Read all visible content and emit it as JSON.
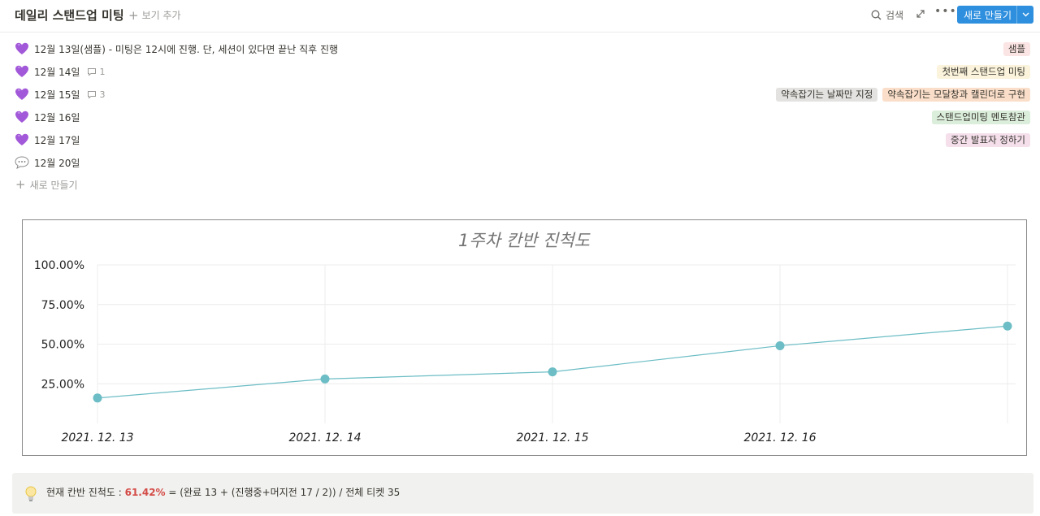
{
  "header": {
    "title": "데일리 스탠드업 미팅",
    "add_view": "보기 추가",
    "search": "검색",
    "new_button": "새로 만들기"
  },
  "rows": [
    {
      "icon": "purple-heart-icon",
      "title": "12월 13일(샘플) - 미팅은 12시에 진행. 단, 세션이 있다면 끝난 직후 진행",
      "comments": "",
      "tags": [
        {
          "label": "샘플",
          "bg": "#fbe4e4"
        }
      ]
    },
    {
      "icon": "purple-heart-icon",
      "title": "12월 14일",
      "comments": "1",
      "tags": [
        {
          "label": "첫번째 스탠드업 미팅",
          "bg": "#fbf3db"
        }
      ]
    },
    {
      "icon": "purple-heart-icon",
      "title": "12월 15일",
      "comments": "3",
      "tags": [
        {
          "label": "약속잡기는 날짜만 지정",
          "bg": "#e3e2e0"
        },
        {
          "label": "약속잡기는 모달창과 캘린더로 구현",
          "bg": "#fadec9"
        }
      ]
    },
    {
      "icon": "purple-heart-icon",
      "title": "12월 16일",
      "comments": "",
      "tags": [
        {
          "label": "스탠드업미팅 멘토참관",
          "bg": "#dbeddb"
        }
      ]
    },
    {
      "icon": "purple-heart-icon",
      "title": "12월 17일",
      "comments": "",
      "tags": [
        {
          "label": "중간 발표자 정하기",
          "bg": "#f4dfeb"
        }
      ]
    },
    {
      "icon": "speech-bubble-icon",
      "title": "12월 20일",
      "comments": "",
      "tags": []
    }
  ],
  "new_row": "새로 만들기",
  "chart_data": {
    "type": "line",
    "title": "1주차 칸반 진척도",
    "xlabel": "",
    "ylabel": "",
    "x": [
      "2021. 12. 13",
      "2021. 12. 14",
      "2021. 12. 15",
      "2021. 12. 16",
      ""
    ],
    "y_ticks": [
      "25.00%",
      "50.00%",
      "75.00%",
      "100.00%"
    ],
    "ylim": [
      0,
      100
    ],
    "grid": true,
    "color": "#6cbdc5",
    "series": [
      {
        "values": [
          16,
          28,
          32.5,
          49,
          61.42
        ]
      }
    ]
  },
  "callout": {
    "prefix": "현재 칸반 진척도 : ",
    "percent": "61.42%",
    "percent_color": "#d44c47",
    "suffix": " = (완료 13 + (진행중+머지전 17 / 2)) / 전체 티켓 35"
  }
}
